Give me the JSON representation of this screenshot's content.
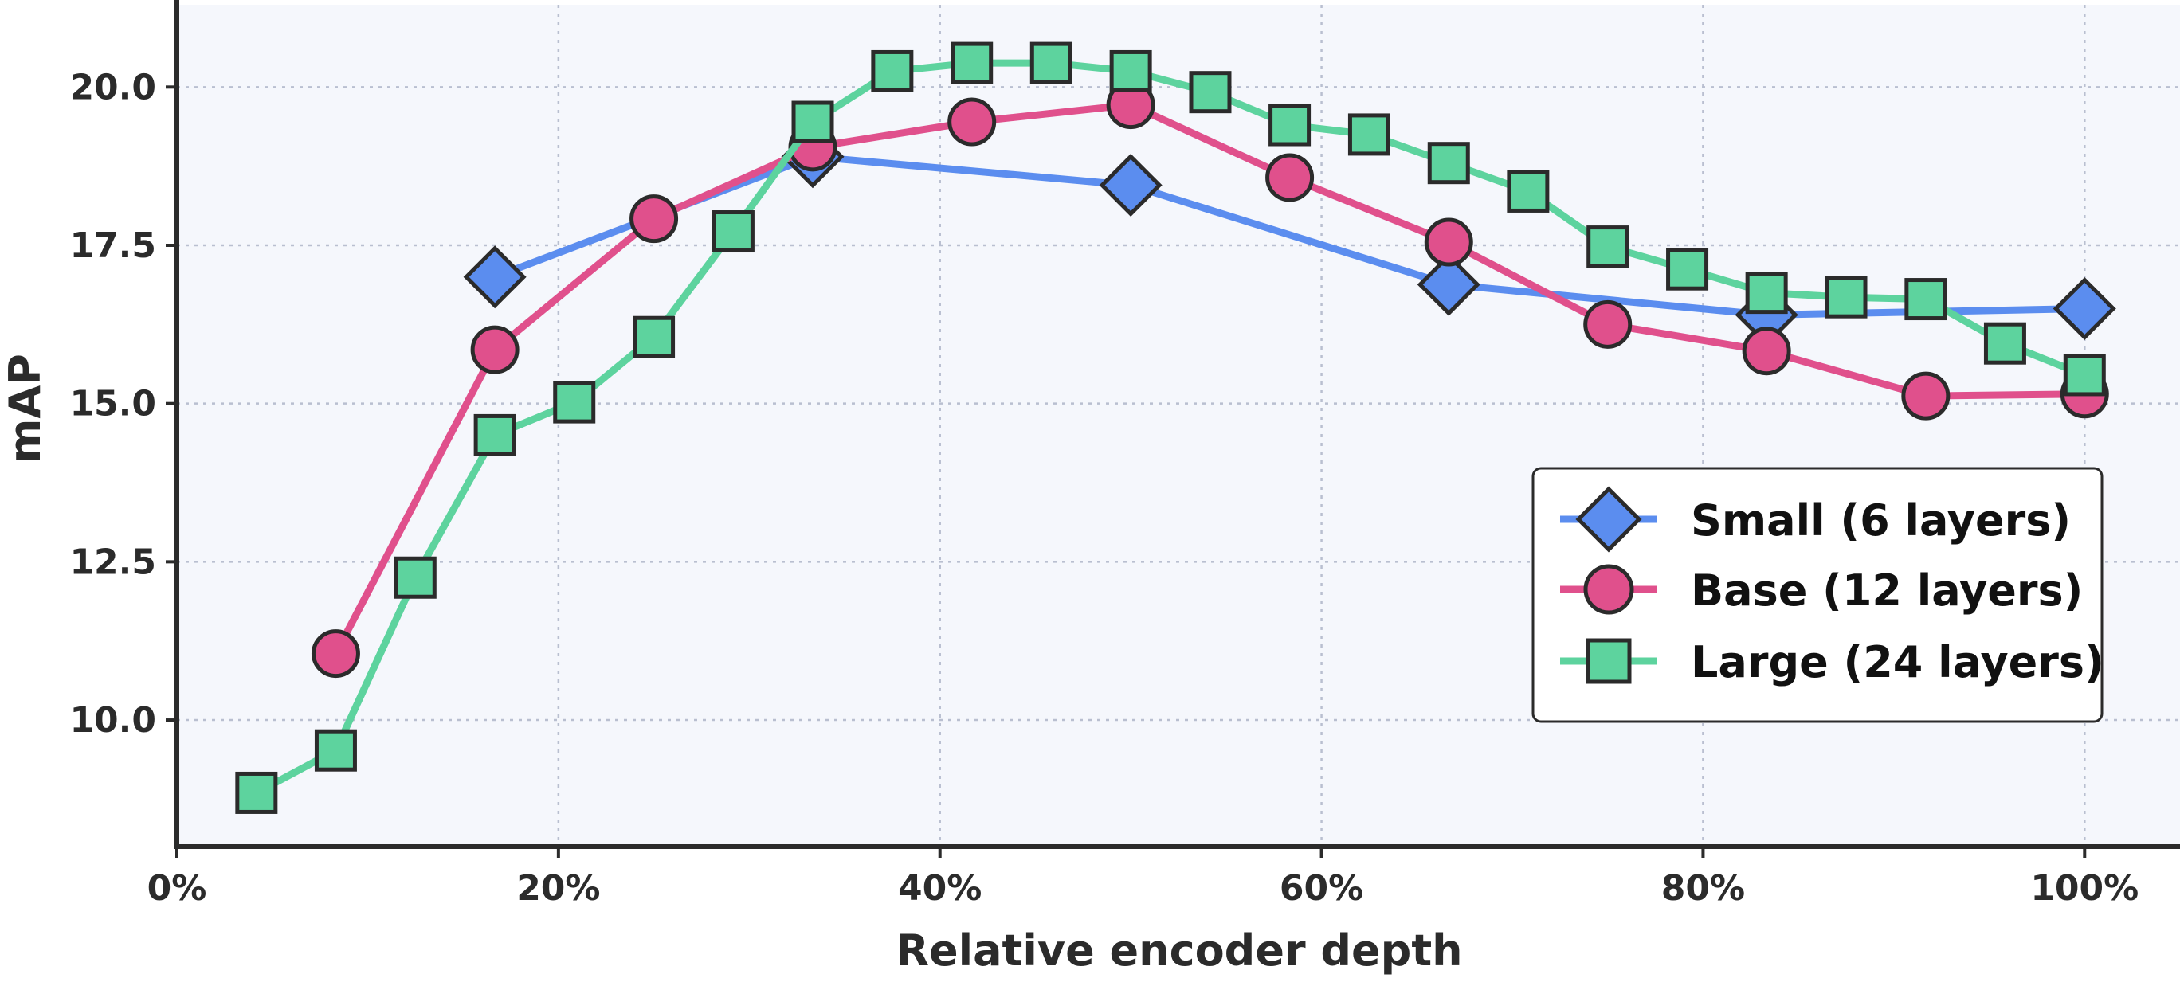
{
  "chart_data": {
    "type": "line",
    "title": "",
    "xlabel": "Relative encoder depth",
    "ylabel": "mAP",
    "xlim": [
      0,
      105
    ],
    "ylim": [
      8.0,
      21.3
    ],
    "x_ticks": [
      0,
      20,
      40,
      60,
      80,
      100
    ],
    "x_tick_labels": [
      "0%",
      "20%",
      "40%",
      "60%",
      "80%",
      "100%"
    ],
    "y_ticks": [
      10.0,
      12.5,
      15.0,
      17.5,
      20.0
    ],
    "y_tick_labels": [
      "10.0",
      "12.5",
      "15.0",
      "17.5",
      "20.0"
    ],
    "grid": true,
    "legend_position": "center-right",
    "series": [
      {
        "name": "Small (6 layers)",
        "color": "#5b8def",
        "marker": "diamond",
        "x": [
          16.67,
          33.33,
          50.0,
          66.67,
          83.33,
          100.0
        ],
        "y": [
          17.0,
          18.9,
          18.45,
          16.88,
          16.4,
          16.5
        ]
      },
      {
        "name": "Base (12 layers)",
        "color": "#e0508c",
        "marker": "circle",
        "x": [
          8.33,
          16.67,
          25.0,
          33.33,
          41.67,
          50.0,
          58.33,
          66.67,
          75.0,
          83.33,
          91.67,
          100.0
        ],
        "y": [
          11.05,
          15.85,
          17.92,
          19.05,
          19.45,
          19.72,
          18.57,
          17.55,
          16.25,
          15.83,
          15.12,
          15.15
        ]
      },
      {
        "name": "Large (24 layers)",
        "color": "#5dd39e",
        "marker": "square",
        "x": [
          4.17,
          8.33,
          12.5,
          16.67,
          20.83,
          25.0,
          29.17,
          33.33,
          37.5,
          41.67,
          45.83,
          50.0,
          54.17,
          58.33,
          62.5,
          66.67,
          70.83,
          75.0,
          79.17,
          83.33,
          87.5,
          91.67,
          95.83,
          100.0
        ],
        "y": [
          8.85,
          9.52,
          12.25,
          14.5,
          15.02,
          16.05,
          17.72,
          19.45,
          20.25,
          20.38,
          20.38,
          20.25,
          19.92,
          19.4,
          19.25,
          18.8,
          18.35,
          17.48,
          17.12,
          16.75,
          16.68,
          16.65,
          15.95,
          15.45
        ]
      }
    ]
  }
}
